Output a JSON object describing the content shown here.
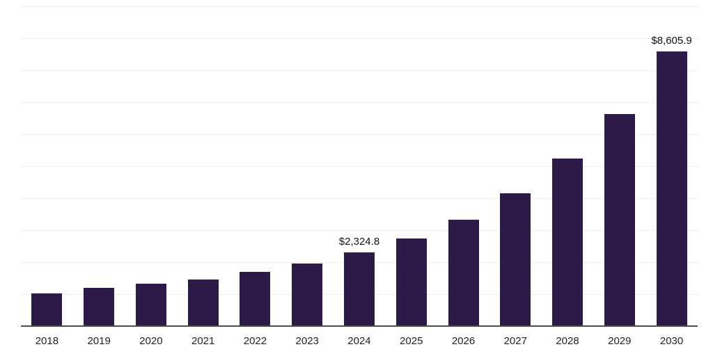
{
  "chart_data": {
    "type": "bar",
    "categories": [
      "2018",
      "2019",
      "2020",
      "2021",
      "2022",
      "2023",
      "2024",
      "2025",
      "2026",
      "2027",
      "2028",
      "2029",
      "2030"
    ],
    "values": [
      1040,
      1210,
      1340,
      1480,
      1720,
      1970,
      2324.8,
      2760,
      3350,
      4180,
      5260,
      6660,
      8605.9
    ],
    "data_labels": [
      {
        "index": 6,
        "text": "$2,324.8"
      },
      {
        "index": 12,
        "text": "$8,605.9"
      }
    ],
    "title": "",
    "xlabel": "",
    "ylabel": "",
    "ylim": [
      0,
      10000
    ],
    "y_gridline_step": 1000,
    "grid": true,
    "legend": "none",
    "bar_color": "#2E1A47",
    "gridline_color": "#eeeeee",
    "baseline_color": "#4d4d4d"
  }
}
